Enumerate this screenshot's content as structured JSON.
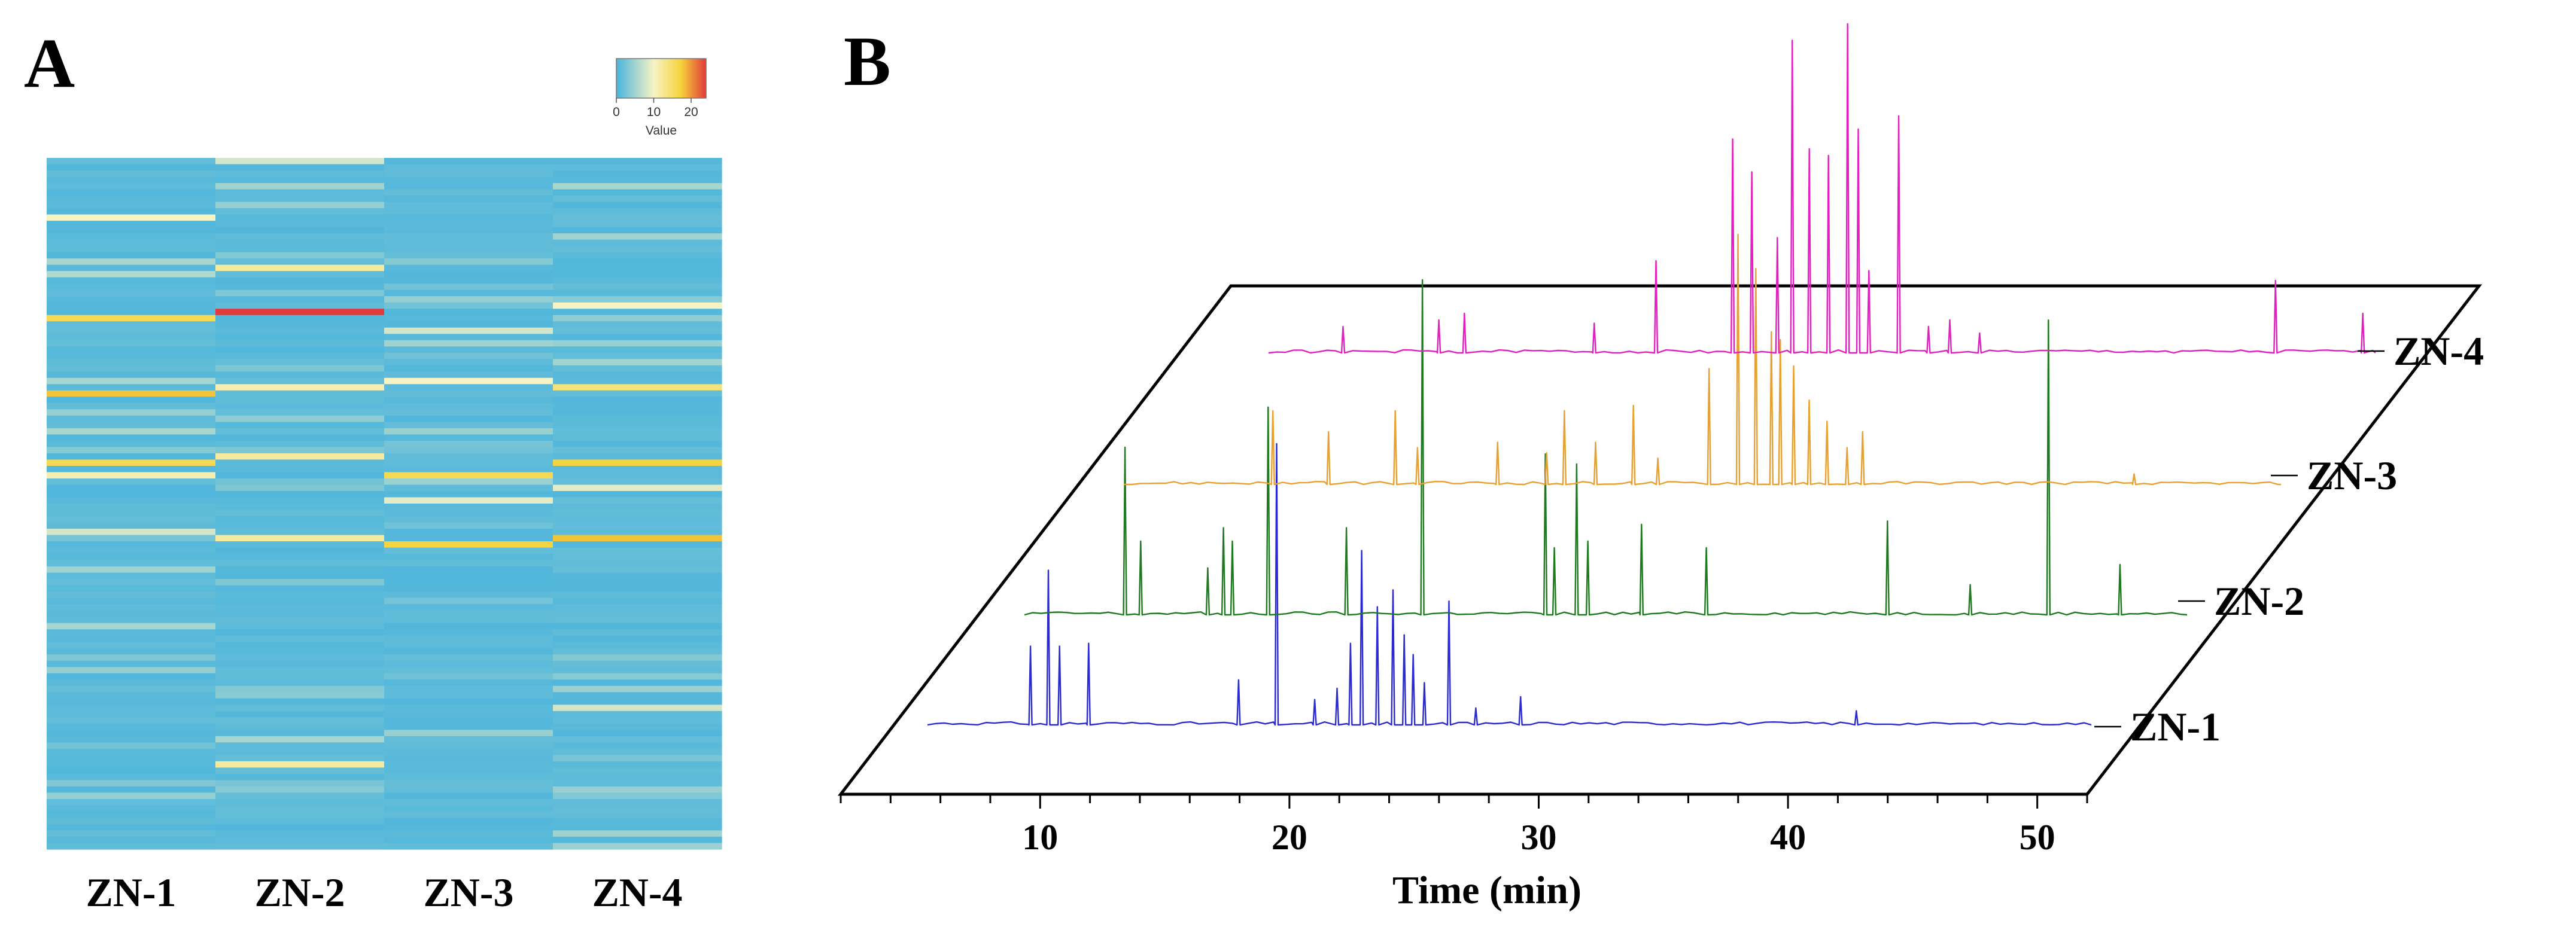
{
  "panels": {
    "a": {
      "letter": "A"
    },
    "b": {
      "letter": "B"
    }
  },
  "colors": {
    "heat_low": "#4ab4dc",
    "heat_mid": "#f7f3c4",
    "heat_high_mid": "#f5d33a",
    "heat_high": "#e23a3a",
    "trace_zn1": "#2a2ad0",
    "trace_zn2": "#1e7a1e",
    "trace_zn3": "#e8a030",
    "trace_zn4": "#e020c0"
  },
  "chart_data": [
    {
      "type": "heatmap",
      "columns": [
        "ZN-1",
        "ZN-2",
        "ZN-3",
        "ZN-4"
      ],
      "colorbar": {
        "label": "Value",
        "ticks": [
          "0",
          "10",
          "20"
        ],
        "range": [
          0,
          24
        ]
      },
      "rows": 110,
      "highlights": [
        {
          "column": "ZN-1",
          "row": 9,
          "value": 10
        },
        {
          "column": "ZN-1",
          "row": 25,
          "value": 16
        },
        {
          "column": "ZN-1",
          "row": 37,
          "value": 18
        },
        {
          "column": "ZN-1",
          "row": 48,
          "value": 16
        },
        {
          "column": "ZN-1",
          "row": 50,
          "value": 11
        },
        {
          "column": "ZN-1",
          "row": 59,
          "value": 8
        },
        {
          "column": "ZN-1",
          "row": 18,
          "value": 6
        },
        {
          "column": "ZN-2",
          "row": 24,
          "value": 24
        },
        {
          "column": "ZN-2",
          "row": 17,
          "value": 12
        },
        {
          "column": "ZN-2",
          "row": 36,
          "value": 11
        },
        {
          "column": "ZN-2",
          "row": 47,
          "value": 12
        },
        {
          "column": "ZN-2",
          "row": 60,
          "value": 12
        },
        {
          "column": "ZN-2",
          "row": 96,
          "value": 12
        },
        {
          "column": "ZN-2",
          "row": 0,
          "value": 8
        },
        {
          "column": "ZN-3",
          "row": 27,
          "value": 8
        },
        {
          "column": "ZN-3",
          "row": 35,
          "value": 10
        },
        {
          "column": "ZN-3",
          "row": 50,
          "value": 16
        },
        {
          "column": "ZN-3",
          "row": 61,
          "value": 17
        },
        {
          "column": "ZN-3",
          "row": 54,
          "value": 9
        },
        {
          "column": "ZN-4",
          "row": 23,
          "value": 10
        },
        {
          "column": "ZN-4",
          "row": 36,
          "value": 14
        },
        {
          "column": "ZN-4",
          "row": 48,
          "value": 17
        },
        {
          "column": "ZN-4",
          "row": 60,
          "value": 18
        },
        {
          "column": "ZN-4",
          "row": 52,
          "value": 9
        },
        {
          "column": "ZN-4",
          "row": 87,
          "value": 8
        }
      ]
    },
    {
      "type": "line",
      "subtype": "stacked 3D chromatograms",
      "xlabel": "Time (min)",
      "xlim": [
        2,
        52
      ],
      "xticks": [
        10,
        20,
        30,
        40,
        50
      ],
      "series": [
        {
          "name": "ZN-1",
          "peaks": [
            [
              9.6,
              0.28
            ],
            [
              10.4,
              0.55
            ],
            [
              10.9,
              0.28
            ],
            [
              12.2,
              0.29
            ],
            [
              18.9,
              0.16
            ],
            [
              20.6,
              1.0
            ],
            [
              22.3,
              0.09
            ],
            [
              23.3,
              0.13
            ],
            [
              23.9,
              0.29
            ],
            [
              24.4,
              0.62
            ],
            [
              25.1,
              0.42
            ],
            [
              25.8,
              0.48
            ],
            [
              26.3,
              0.32
            ],
            [
              26.7,
              0.25
            ],
            [
              27.2,
              0.15
            ],
            [
              28.3,
              0.44
            ],
            [
              29.5,
              0.06
            ],
            [
              31.5,
              0.1
            ],
            [
              46.5,
              0.05
            ]
          ]
        },
        {
          "name": "ZN-2",
          "peaks": [
            [
              9.5,
              0.5
            ],
            [
              10.2,
              0.22
            ],
            [
              13.2,
              0.14
            ],
            [
              13.9,
              0.26
            ],
            [
              14.3,
              0.22
            ],
            [
              15.9,
              0.62
            ],
            [
              19.4,
              0.26
            ],
            [
              22.8,
              1.0
            ],
            [
              28.3,
              0.48
            ],
            [
              28.7,
              0.2
            ],
            [
              29.7,
              0.45
            ],
            [
              30.2,
              0.22
            ],
            [
              32.6,
              0.27
            ],
            [
              35.5,
              0.2
            ],
            [
              43.6,
              0.28
            ],
            [
              47.3,
              0.09
            ],
            [
              50.8,
              0.88
            ],
            [
              54.0,
              0.15
            ]
          ]
        },
        {
          "name": "ZN-3",
          "peaks": [
            [
              11.7,
              0.28
            ],
            [
              14.2,
              0.2
            ],
            [
              17.2,
              0.28
            ],
            [
              18.2,
              0.14
            ],
            [
              21.8,
              0.16
            ],
            [
              24.0,
              0.12
            ],
            [
              24.8,
              0.28
            ],
            [
              26.2,
              0.16
            ],
            [
              27.9,
              0.3
            ],
            [
              29.0,
              0.1
            ],
            [
              31.3,
              0.44
            ],
            [
              32.6,
              0.95
            ],
            [
              33.4,
              0.82
            ],
            [
              34.1,
              0.58
            ],
            [
              34.5,
              0.55
            ],
            [
              35.1,
              0.45
            ],
            [
              35.8,
              0.32
            ],
            [
              36.6,
              0.24
            ],
            [
              37.5,
              0.14
            ],
            [
              38.2,
              0.2
            ],
            [
              50.4,
              0.04
            ]
          ]
        },
        {
          "name": "ZN-4",
          "peaks": [
            [
              8.5,
              0.08
            ],
            [
              13.0,
              0.1
            ],
            [
              14.2,
              0.12
            ],
            [
              20.3,
              0.09
            ],
            [
              23.2,
              0.28
            ],
            [
              26.8,
              0.65
            ],
            [
              27.7,
              0.55
            ],
            [
              28.9,
              0.35
            ],
            [
              29.6,
              0.95
            ],
            [
              30.4,
              0.62
            ],
            [
              31.3,
              0.6
            ],
            [
              32.2,
              1.0
            ],
            [
              32.7,
              0.68
            ],
            [
              33.2,
              0.25
            ],
            [
              34.6,
              0.72
            ],
            [
              36.0,
              0.08
            ],
            [
              37.0,
              0.1
            ],
            [
              38.4,
              0.06
            ],
            [
              52.3,
              0.22
            ],
            [
              56.4,
              0.12
            ]
          ]
        }
      ]
    }
  ]
}
